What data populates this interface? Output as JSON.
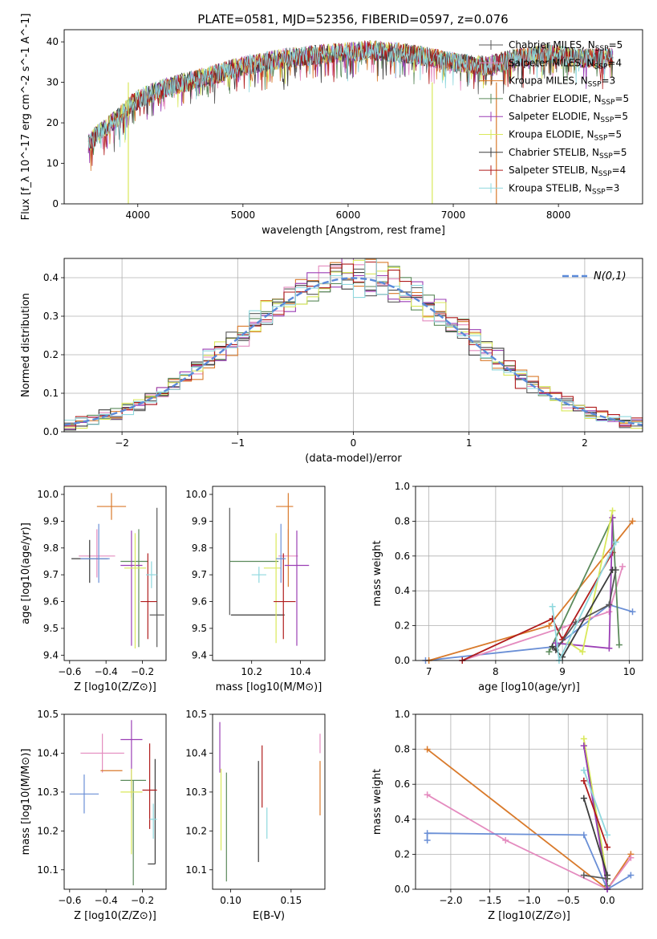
{
  "colors": {
    "Chabrier MILES": "#5a5a5a",
    "Salpeter MILES": "#e48bbf",
    "Kroupa MILES": "#d97a2b",
    "Chabrier ELODIE": "#5b8a5b",
    "Salpeter ELODIE": "#9b3fb5",
    "Kroupa ELODIE": "#d9e85a",
    "Chabrier STELIB": "#3c3c3c",
    "Salpeter STELIB": "#b01c1c",
    "Kroupa STELIB": "#8fd8de",
    "blue": "#6a8fd6",
    "normal": "#5b8ad9"
  },
  "chart_data": [
    {
      "id": "spectrum",
      "type": "line",
      "title": "PLATE=0581, MJD=52356, FIBERID=0597, z=0.076",
      "xlabel": "wavelength [Angstrom, rest frame]",
      "ylabel": "Flux [f_λ 10^-17 erg cm^-2 s^-1 A^-1]",
      "xlim": [
        3300,
        8800
      ],
      "ylim": [
        0,
        43
      ],
      "xticks": [
        "4000",
        "5000",
        "6000",
        "7000",
        "8000"
      ],
      "yticks": [
        "0",
        "10",
        "20",
        "30",
        "40"
      ],
      "x_range": [
        3530,
        8520
      ],
      "continuum_y": [
        [
          3530,
          15
        ],
        [
          3650,
          18
        ],
        [
          3800,
          21
        ],
        [
          3950,
          25
        ],
        [
          4100,
          27
        ],
        [
          4300,
          29
        ],
        [
          4600,
          31
        ],
        [
          5000,
          34
        ],
        [
          5400,
          36
        ],
        [
          5800,
          37
        ],
        [
          6200,
          38
        ],
        [
          6600,
          37
        ],
        [
          7000,
          35
        ],
        [
          7300,
          34
        ],
        [
          7600,
          36
        ],
        [
          7900,
          37
        ],
        [
          8200,
          36
        ],
        [
          8520,
          36
        ]
      ],
      "legend": [
        {
          "name": "Chabrier MILES",
          "nssp": "5"
        },
        {
          "name": "Salpeter MILES",
          "nssp": "4"
        },
        {
          "name": "Kroupa MILES",
          "nssp": "3"
        },
        {
          "name": "Chabrier ELODIE",
          "nssp": "5"
        },
        {
          "name": "Salpeter ELODIE",
          "nssp": "5"
        },
        {
          "name": "Kroupa ELODIE",
          "nssp": "5"
        },
        {
          "name": "Chabrier STELIB",
          "nssp": "5"
        },
        {
          "name": "Salpeter STELIB",
          "nssp": "4"
        },
        {
          "name": "Kroupa STELIB",
          "nssp": "3"
        }
      ],
      "legend_placement": "right"
    },
    {
      "id": "residuals",
      "type": "bar",
      "xlabel": "(data-model)/error",
      "ylabel": "Normed distribution",
      "xlim": [
        -2.5,
        2.5
      ],
      "ylim": [
        0,
        0.45
      ],
      "xticks": [
        "−2",
        "−1",
        "0",
        "1",
        "2"
      ],
      "yticks": [
        "0.0",
        "0.1",
        "0.2",
        "0.3",
        "0.4"
      ],
      "grid": true,
      "bins": 50,
      "reference_label": "N(0,1)",
      "legend_placement": "top-right"
    },
    {
      "id": "age_vs_Z",
      "type": "scatter",
      "xlabel": "Z [log10(Z/Z⊙)]",
      "ylabel": "age [log10(age/yr)]",
      "xlim": [
        -0.63,
        -0.07
      ],
      "ylim": [
        9.38,
        10.03
      ],
      "xticks": [
        "−0.6",
        "−0.4",
        "−0.2"
      ],
      "yticks": [
        "9.4",
        "9.5",
        "9.6",
        "9.7",
        "9.8",
        "9.9",
        "10.0"
      ],
      "points": [
        {
          "model": "Chabrier MILES",
          "x": -0.12,
          "xe": [
            0.04,
            0.04
          ],
          "y": 9.55,
          "ye": [
            0.12,
            0.4
          ]
        },
        {
          "model": "Salpeter MILES",
          "x": -0.45,
          "xe": [
            0.1,
            0.1
          ],
          "y": 9.77,
          "ye": [
            0.08,
            0.1
          ]
        },
        {
          "model": "Kroupa MILES",
          "x": -0.37,
          "xe": [
            0.08,
            0.08
          ],
          "y": 9.955,
          "ye": [
            0.05,
            0.05
          ]
        },
        {
          "model": "Chabrier ELODIE",
          "x": -0.22,
          "xe": [
            0.1,
            0.05
          ],
          "y": 9.75,
          "ye": [
            0.32,
            0.12
          ]
        },
        {
          "model": "Salpeter ELODIE",
          "x": -0.26,
          "xe": [
            0.06,
            0.06
          ],
          "y": 9.735,
          "ye": [
            0.3,
            0.13
          ]
        },
        {
          "model": "Kroupa ELODIE",
          "x": -0.24,
          "xe": [
            0.06,
            0.06
          ],
          "y": 9.725,
          "ye": [
            0.3,
            0.13
          ]
        },
        {
          "model": "Chabrier STELIB",
          "x": -0.49,
          "xe": [
            0.1,
            0.1
          ],
          "y": 9.76,
          "ye": [
            0.09,
            0.07
          ]
        },
        {
          "model": "Salpeter STELIB",
          "x": -0.17,
          "xe": [
            0.04,
            0.05
          ],
          "y": 9.6,
          "ye": [
            0.14,
            0.18
          ]
        },
        {
          "model": "Kroupa STELIB",
          "x": -0.15,
          "xe": [
            0.03,
            0.03
          ],
          "y": 9.7,
          "ye": [
            0.05,
            0.05
          ]
        },
        {
          "model": "blue",
          "x": -0.44,
          "xe": [
            0.1,
            0.06
          ],
          "y": 9.76,
          "ye": [
            0.09,
            0.13
          ]
        }
      ]
    },
    {
      "id": "age_vs_mass",
      "type": "scatter",
      "xlabel": "mass [log10(M/M⊙)]",
      "ylabel": "",
      "xlim": [
        10.04,
        10.5
      ],
      "ylim": [
        9.38,
        10.03
      ],
      "xticks": [
        "10.2",
        "10.4"
      ],
      "yticks": [
        "9.4",
        "9.5",
        "9.6",
        "9.7",
        "9.8",
        "9.9",
        "10.0"
      ],
      "points": [
        {
          "model": "Chabrier MILES",
          "x": 10.11,
          "xe": [
            0.0,
            0.0
          ],
          "y": 9.75,
          "ye": [
            0.2,
            0.2
          ]
        },
        {
          "model": "Chabrier STELIB",
          "x": 10.115,
          "xe": [
            0.0,
            0.22
          ],
          "y": 9.55,
          "ye": [
            0.0,
            0.0
          ]
        },
        {
          "model": "Chabrier ELODIE",
          "x": 10.25,
          "xe": [
            0.14,
            0.06
          ],
          "y": 9.75,
          "ye": [
            0.0,
            0.0
          ]
        },
        {
          "model": "Salpeter MILES",
          "x": 10.35,
          "xe": [
            0.04,
            0.04
          ],
          "y": 9.77,
          "ye": [
            0.0,
            0.1
          ]
        },
        {
          "model": "Kroupa MILES",
          "x": 10.35,
          "xe": [
            0.05,
            0.02
          ],
          "y": 9.955,
          "ye": [
            0.3,
            0.05
          ]
        },
        {
          "model": "Salpeter ELODIE",
          "x": 10.385,
          "xe": [
            0.05,
            0.05
          ],
          "y": 9.735,
          "ye": [
            0.3,
            0.13
          ]
        },
        {
          "model": "Kroupa ELODIE",
          "x": 10.3,
          "xe": [
            0.05,
            0.02
          ],
          "y": 9.725,
          "ye": [
            0.28,
            0.13
          ]
        },
        {
          "model": "Salpeter STELIB",
          "x": 10.33,
          "xe": [
            0.04,
            0.05
          ],
          "y": 9.6,
          "ye": [
            0.14,
            0.18
          ]
        },
        {
          "model": "Kroupa STELIB",
          "x": 10.23,
          "xe": [
            0.03,
            0.03
          ],
          "y": 9.7,
          "ye": [
            0.03,
            0.03
          ]
        },
        {
          "model": "blue",
          "x": 10.32,
          "xe": [
            0.02,
            0.02
          ],
          "y": 9.76,
          "ye": [
            0.09,
            0.13
          ]
        }
      ]
    },
    {
      "id": "weight_vs_age",
      "type": "line",
      "xlabel": "age [log10(age/yr)]",
      "ylabel": "mass weight",
      "xlim": [
        6.8,
        10.2
      ],
      "ylim": [
        0,
        1.0
      ],
      "xticks": [
        "7",
        "8",
        "9",
        "10"
      ],
      "yticks": [
        "0.0",
        "0.2",
        "0.4",
        "0.6",
        "0.8",
        "1.0"
      ],
      "grid": true,
      "series": [
        {
          "model": "blue",
          "x": [
            6.95,
            8.9,
            9.7,
            10.05
          ],
          "y": [
            0.0,
            0.08,
            0.32,
            0.28
          ]
        },
        {
          "model": "Kroupa MILES",
          "x": [
            7.0,
            8.8,
            10.05
          ],
          "y": [
            0.0,
            0.2,
            0.8
          ]
        },
        {
          "model": "Salpeter MILES",
          "x": [
            7.5,
            9.0,
            9.7,
            9.9
          ],
          "y": [
            0.0,
            0.19,
            0.28,
            0.54
          ]
        },
        {
          "model": "Salpeter STELIB",
          "x": [
            7.5,
            8.85,
            9.0,
            9.75
          ],
          "y": [
            0.0,
            0.24,
            0.12,
            0.62
          ]
        },
        {
          "model": "Chabrier ELODIE",
          "x": [
            8.8,
            9.75,
            9.85
          ],
          "y": [
            0.05,
            0.82,
            0.09
          ]
        },
        {
          "model": "Salpeter ELODIE",
          "x": [
            8.9,
            9.7,
            9.75
          ],
          "y": [
            0.1,
            0.07,
            0.82
          ]
        },
        {
          "model": "Kroupa ELODIE",
          "x": [
            9.1,
            9.3,
            9.75
          ],
          "y": [
            0.1,
            0.05,
            0.86
          ]
        },
        {
          "model": "Chabrier MILES",
          "x": [
            8.9,
            9.2,
            9.7,
            9.8
          ],
          "y": [
            0.06,
            0.22,
            0.32,
            0.52
          ]
        },
        {
          "model": "Chabrier STELIB",
          "x": [
            8.85,
            9.0,
            9.75
          ],
          "y": [
            0.08,
            0.02,
            0.52
          ]
        },
        {
          "model": "Kroupa STELIB",
          "x": [
            8.85,
            8.95,
            9.8
          ],
          "y": [
            0.31,
            0.0,
            0.68
          ]
        }
      ]
    },
    {
      "id": "mass_vs_Z",
      "type": "scatter",
      "xlabel": "Z [log10(Z/Z⊙)]",
      "ylabel": "mass [log10(M/M⊙)]",
      "xlim": [
        -0.63,
        -0.07
      ],
      "ylim": [
        10.05,
        10.5
      ],
      "xticks": [
        "−0.6",
        "−0.4",
        "−0.2"
      ],
      "yticks": [
        "10.1",
        "10.2",
        "10.3",
        "10.4",
        "10.5"
      ],
      "points": [
        {
          "model": "blue",
          "x": -0.52,
          "xe": [
            0.08,
            0.08
          ],
          "y": 10.295,
          "ye": [
            0.05,
            0.05
          ]
        },
        {
          "model": "Salpeter MILES",
          "x": -0.42,
          "xe": [
            0.12,
            0.12
          ],
          "y": 10.4,
          "ye": [
            0.05,
            0.05
          ]
        },
        {
          "model": "Kroupa MILES",
          "x": -0.37,
          "xe": [
            0.06,
            0.06
          ],
          "y": 10.355,
          "ye": [
            0.0,
            0.0
          ]
        },
        {
          "model": "Chabrier ELODIE",
          "x": -0.25,
          "xe": [
            0.07,
            0.07
          ],
          "y": 10.33,
          "ye": [
            0.27,
            0.0
          ]
        },
        {
          "model": "Salpeter ELODIE",
          "x": -0.26,
          "xe": [
            0.06,
            0.06
          ],
          "y": 10.435,
          "ye": [
            0.15,
            0.05
          ]
        },
        {
          "model": "Kroupa ELODIE",
          "x": -0.26,
          "xe": [
            0.06,
            0.06
          ],
          "y": 10.3,
          "ye": [
            0.16,
            0.06
          ]
        },
        {
          "model": "Chabrier STELIB",
          "x": -0.13,
          "xe": [
            0.04,
            0.0
          ],
          "y": 10.115,
          "ye": [
            0.0,
            0.27
          ]
        },
        {
          "model": "Salpeter STELIB",
          "x": -0.16,
          "xe": [
            0.04,
            0.04
          ],
          "y": 10.305,
          "ye": [
            0.1,
            0.12
          ]
        },
        {
          "model": "Kroupa STELIB",
          "x": -0.14,
          "xe": [
            0.02,
            0.02
          ],
          "y": 10.23,
          "ye": [
            0.05,
            0.04
          ]
        }
      ]
    },
    {
      "id": "mass_vs_EBV",
      "type": "scatter",
      "xlabel": "E(B-V)",
      "ylabel": "",
      "xlim": [
        0.085,
        0.178
      ],
      "ylim": [
        10.05,
        10.5
      ],
      "xticks": [
        "0.10",
        "0.15"
      ],
      "yticks": [
        "10.1",
        "10.2",
        "10.3",
        "10.4",
        "10.5"
      ],
      "points": [
        {
          "model": "Salpeter ELODIE",
          "x": 0.091,
          "xe": [
            0,
            0
          ],
          "y": 10.4,
          "ye": [
            0.05,
            0.08
          ]
        },
        {
          "model": "Kroupa ELODIE",
          "x": 0.092,
          "xe": [
            0,
            0
          ],
          "y": 10.26,
          "ye": [
            0.11,
            0.1
          ]
        },
        {
          "model": "Chabrier ELODIE",
          "x": 0.0965,
          "xe": [
            0,
            0
          ],
          "y": 10.2,
          "ye": [
            0.13,
            0.15
          ]
        },
        {
          "model": "Chabrier STELIB",
          "x": 0.123,
          "xe": [
            0,
            0
          ],
          "y": 10.25,
          "ye": [
            0.13,
            0.13
          ]
        },
        {
          "model": "Salpeter STELIB",
          "x": 0.126,
          "xe": [
            0,
            0
          ],
          "y": 10.33,
          "ye": [
            0.07,
            0.09
          ]
        },
        {
          "model": "Kroupa STELIB",
          "x": 0.13,
          "xe": [
            0,
            0
          ],
          "y": 10.22,
          "ye": [
            0.04,
            0.04
          ]
        },
        {
          "model": "Salpeter MILES",
          "x": 0.174,
          "xe": [
            0,
            0
          ],
          "y": 10.4,
          "ye": [
            0.0,
            0.05
          ]
        },
        {
          "model": "Kroupa MILES",
          "x": 0.174,
          "xe": [
            0,
            0
          ],
          "y": 10.3,
          "ye": [
            0.06,
            0.08
          ]
        }
      ]
    },
    {
      "id": "weight_vs_Z",
      "type": "line",
      "xlabel": "Z [log10(Z/Z⊙)]",
      "ylabel": "mass weight",
      "xlim": [
        -2.45,
        0.45
      ],
      "ylim": [
        0,
        1.0
      ],
      "xticks": [
        "−2.0",
        "−1.5",
        "−1.0",
        "−0.5",
        "0.0"
      ],
      "yticks": [
        "0.0",
        "0.2",
        "0.4",
        "0.6",
        "0.8",
        "1.0"
      ],
      "grid": true,
      "series": [
        {
          "model": "Kroupa MILES",
          "x": [
            -2.3,
            0.0,
            0.3
          ],
          "y": [
            0.8,
            0.0,
            0.2
          ]
        },
        {
          "model": "Salpeter MILES",
          "x": [
            -2.3,
            -1.3,
            0.0,
            0.3
          ],
          "y": [
            0.54,
            0.28,
            0.0,
            0.18
          ]
        },
        {
          "model": "blue",
          "x": [
            -2.3,
            -2.3,
            -0.3,
            0.0,
            0.3
          ],
          "y": [
            0.28,
            0.32,
            0.31,
            0.0,
            0.08
          ]
        },
        {
          "model": "Kroupa ELODIE",
          "x": [
            -0.3,
            0.0
          ],
          "y": [
            0.86,
            0.06
          ]
        },
        {
          "model": "Chabrier ELODIE",
          "x": [
            -0.3,
            0.0
          ],
          "y": [
            0.82,
            0.02
          ]
        },
        {
          "model": "Salpeter ELODIE",
          "x": [
            -0.3,
            0.0
          ],
          "y": [
            0.82,
            0.0
          ]
        },
        {
          "model": "Salpeter STELIB",
          "x": [
            -0.3,
            0.0
          ],
          "y": [
            0.62,
            0.24
          ]
        },
        {
          "model": "Chabrier STELIB",
          "x": [
            -0.3,
            0.0
          ],
          "y": [
            0.52,
            0.08
          ]
        },
        {
          "model": "Kroupa STELIB",
          "x": [
            -0.3,
            0.0
          ],
          "y": [
            0.68,
            0.31
          ]
        },
        {
          "model": "Chabrier MILES",
          "x": [
            -0.3,
            0.0
          ],
          "y": [
            0.08,
            0.06
          ]
        }
      ]
    }
  ]
}
